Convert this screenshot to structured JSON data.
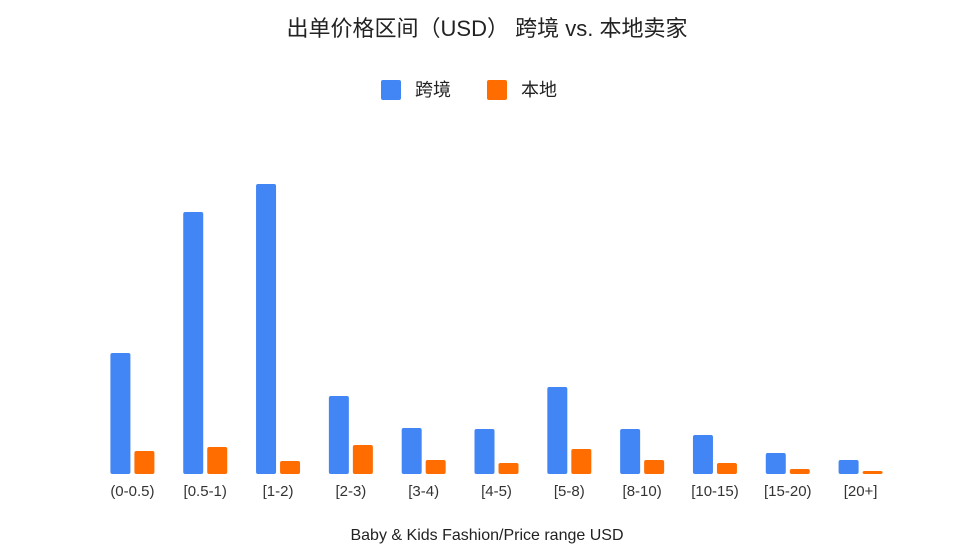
{
  "chart_data": {
    "type": "bar",
    "title": "出单价格区间（USD） 跨境 vs. 本地卖家",
    "x_label": "Baby & Kids Fashion/Price range USD",
    "categories": [
      "(0-0.5)",
      "[0.5-1)",
      "[1-2)",
      "[2-3)",
      "[3-4)",
      "[4-5)",
      "[5-8)",
      "[8-10)",
      "[10-15)",
      "[15-20)",
      "[20+]"
    ],
    "series": [
      {
        "name": "跨境",
        "color": "#4285f4",
        "values": [
          121,
          262,
          290,
          78,
          46,
          45,
          87,
          45,
          39,
          21,
          14
        ]
      },
      {
        "name": "本地",
        "color": "#ff6d01",
        "values": [
          23,
          27,
          13,
          29,
          14,
          11,
          25,
          14,
          11,
          5,
          3
        ]
      }
    ]
  }
}
